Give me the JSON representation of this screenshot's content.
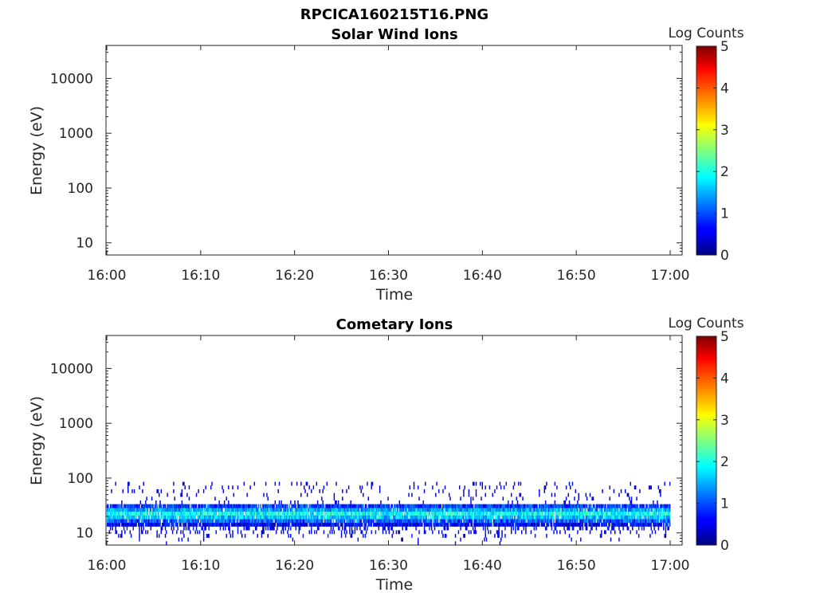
{
  "figure_title": "RPCICA160215T16.PNG",
  "colorbar": {
    "label": "Log Counts",
    "ticks": [
      "0",
      "1",
      "2",
      "3",
      "4",
      "5"
    ],
    "range": [
      0,
      5
    ],
    "colormap": "jet"
  },
  "chart_data": [
    {
      "type": "heatmap",
      "title": "Solar Wind Ions",
      "xlabel": "Time",
      "ylabel": "Energy (eV)",
      "x_ticks": [
        "16:00",
        "16:10",
        "16:20",
        "16:30",
        "16:40",
        "16:50",
        "17:00"
      ],
      "y_ticks": [
        "10",
        "100",
        "1000",
        "10000"
      ],
      "xlim": [
        "16:00",
        "17:01"
      ],
      "ylim": [
        6,
        40000
      ],
      "y_scale": "log",
      "data": "no counts shown"
    },
    {
      "type": "heatmap",
      "title": "Cometary Ions",
      "xlabel": "Time",
      "ylabel": "Energy (eV)",
      "x_ticks": [
        "16:00",
        "16:10",
        "16:20",
        "16:30",
        "16:40",
        "16:50",
        "17:00"
      ],
      "y_ticks": [
        "10",
        "100",
        "1000",
        "10000"
      ],
      "xlim": [
        "16:00",
        "17:01"
      ],
      "ylim": [
        6,
        40000
      ],
      "y_scale": "log",
      "band": {
        "time_start": "16:00",
        "time_end": "17:00",
        "energy_core_low_eV": 14,
        "energy_core_high_eV": 35,
        "energy_peak_eV": 22,
        "energy_sparse_max_eV": 85,
        "energy_sparse_min_eV": 6,
        "log_counts_peak": 2.0,
        "log_counts_edge": 0.3
      }
    }
  ]
}
